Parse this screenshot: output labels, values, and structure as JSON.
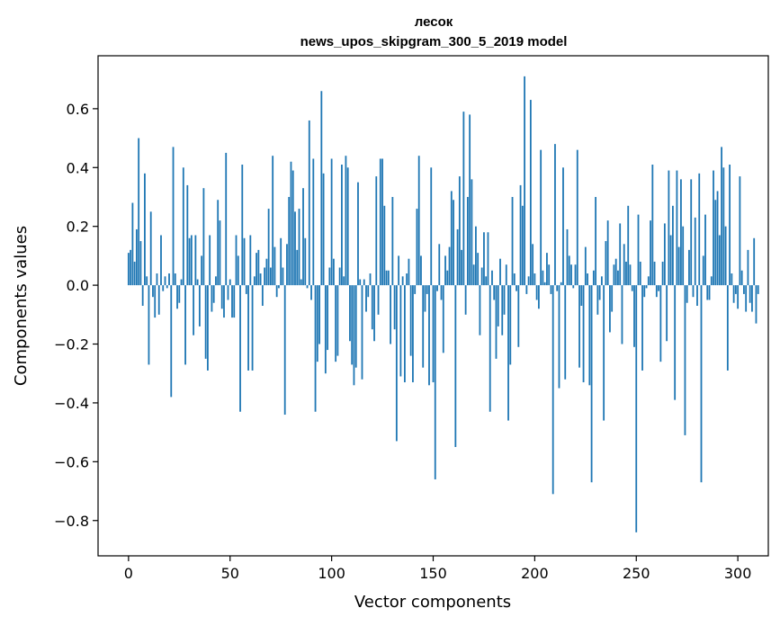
{
  "chart_data": {
    "type": "bar",
    "title_line1": "лесок",
    "title_line2": "news_upos_skipgram_300_5_2019 model",
    "xlabel": "Vector components",
    "ylabel": "Components values",
    "xlim": [
      -15,
      315
    ],
    "ylim": [
      -0.92,
      0.78
    ],
    "xticks": [
      0,
      50,
      100,
      150,
      200,
      250,
      300
    ],
    "xtick_labels": [
      "0",
      "50",
      "100",
      "150",
      "200",
      "250",
      "300"
    ],
    "yticks": [
      -0.8,
      -0.6,
      -0.4,
      -0.2,
      0.0,
      0.2,
      0.4,
      0.6
    ],
    "ytick_labels": [
      "−0.8",
      "−0.6",
      "−0.4",
      "−0.2",
      "0.0",
      "0.2",
      "0.4",
      "0.6"
    ],
    "bar_color": "#1f77b4",
    "grid": false,
    "values": [
      0.11,
      0.12,
      0.28,
      0.08,
      0.19,
      0.5,
      0.15,
      -0.07,
      0.38,
      0.03,
      -0.27,
      0.25,
      -0.04,
      -0.11,
      0.04,
      -0.1,
      0.17,
      -0.02,
      0.03,
      -0.01,
      0.04,
      -0.38,
      0.47,
      0.04,
      -0.08,
      -0.06,
      0.02,
      0.4,
      -0.27,
      0.34,
      0.16,
      0.17,
      -0.17,
      0.17,
      0.02,
      -0.14,
      0.1,
      0.33,
      -0.25,
      -0.29,
      0.17,
      -0.09,
      -0.06,
      0.03,
      0.29,
      0.22,
      -0.08,
      -0.11,
      0.45,
      -0.05,
      0.02,
      -0.11,
      -0.11,
      0.17,
      0.1,
      -0.43,
      0.41,
      0.16,
      -0.03,
      -0.29,
      0.17,
      -0.29,
      0.03,
      0.11,
      0.12,
      0.04,
      -0.07,
      0.06,
      0.09,
      0.26,
      0.06,
      0.44,
      0.13,
      -0.04,
      -0.01,
      0.16,
      0.06,
      -0.44,
      0.14,
      0.3,
      0.42,
      0.39,
      0.25,
      0.12,
      0.26,
      0.02,
      0.33,
      0.16,
      -0.01,
      0.56,
      -0.05,
      0.43,
      -0.43,
      -0.26,
      -0.2,
      0.66,
      0.38,
      -0.3,
      -0.22,
      0.06,
      0.43,
      0.09,
      -0.26,
      -0.24,
      0.06,
      0.41,
      0.03,
      0.44,
      0.4,
      -0.19,
      -0.27,
      -0.34,
      -0.28,
      0.35,
      0.02,
      -0.32,
      0.02,
      -0.09,
      -0.04,
      0.04,
      -0.15,
      -0.19,
      0.37,
      -0.1,
      0.43,
      0.43,
      0.27,
      0.05,
      0.05,
      -0.2,
      0.3,
      -0.15,
      -0.53,
      0.1,
      -0.31,
      0.03,
      -0.33,
      0.04,
      0.09,
      -0.24,
      -0.33,
      -0.03,
      0.26,
      0.44,
      0.1,
      -0.28,
      -0.09,
      -0.03,
      -0.34,
      0.4,
      -0.33,
      -0.66,
      -0.02,
      0.14,
      -0.05,
      -0.23,
      0.1,
      0.05,
      0.13,
      0.32,
      0.29,
      -0.55,
      0.19,
      0.37,
      0.12,
      0.59,
      -0.1,
      0.3,
      0.58,
      0.36,
      0.07,
      0.2,
      0.11,
      -0.17,
      0.06,
      0.18,
      0.03,
      0.18,
      -0.43,
      0.05,
      -0.05,
      -0.25,
      -0.14,
      0.09,
      -0.17,
      -0.1,
      0.07,
      -0.46,
      -0.27,
      0.3,
      0.04,
      -0.02,
      -0.21,
      0.34,
      0.27,
      0.71,
      -0.03,
      0.03,
      0.63,
      0.14,
      0.04,
      -0.05,
      -0.08,
      0.46,
      0.05,
      0.01,
      0.11,
      0.07,
      -0.03,
      -0.71,
      0.48,
      -0.02,
      -0.35,
      0.01,
      0.4,
      -0.32,
      0.19,
      0.1,
      0.07,
      -0.01,
      0.07,
      0.46,
      -0.28,
      -0.07,
      -0.33,
      0.13,
      0.04,
      -0.34,
      -0.67,
      0.05,
      0.3,
      -0.1,
      -0.05,
      0.03,
      -0.46,
      0.15,
      0.22,
      -0.16,
      -0.09,
      0.07,
      0.09,
      0.05,
      0.21,
      -0.2,
      0.14,
      0.08,
      0.27,
      0.07,
      -0.02,
      -0.21,
      -0.84,
      0.24,
      0.08,
      -0.29,
      -0.04,
      -0.01,
      0.03,
      0.22,
      0.41,
      0.08,
      -0.04,
      -0.02,
      -0.26,
      0.08,
      0.21,
      -0.19,
      0.39,
      0.17,
      0.27,
      -0.39,
      0.39,
      0.13,
      0.36,
      0.2,
      -0.51,
      -0.06,
      0.12,
      0.36,
      -0.04,
      0.23,
      -0.07,
      0.38,
      -0.67,
      0.1,
      0.24,
      -0.05,
      -0.05,
      0.03,
      0.39,
      0.29,
      0.32,
      0.17,
      0.47,
      0.4,
      0.2,
      -0.29,
      0.41,
      0.04,
      -0.06,
      -0.03,
      -0.08,
      0.37,
      0.05,
      -0.03,
      -0.09,
      0.12,
      -0.06,
      -0.09,
      0.16,
      -0.13,
      -0.03
    ]
  }
}
